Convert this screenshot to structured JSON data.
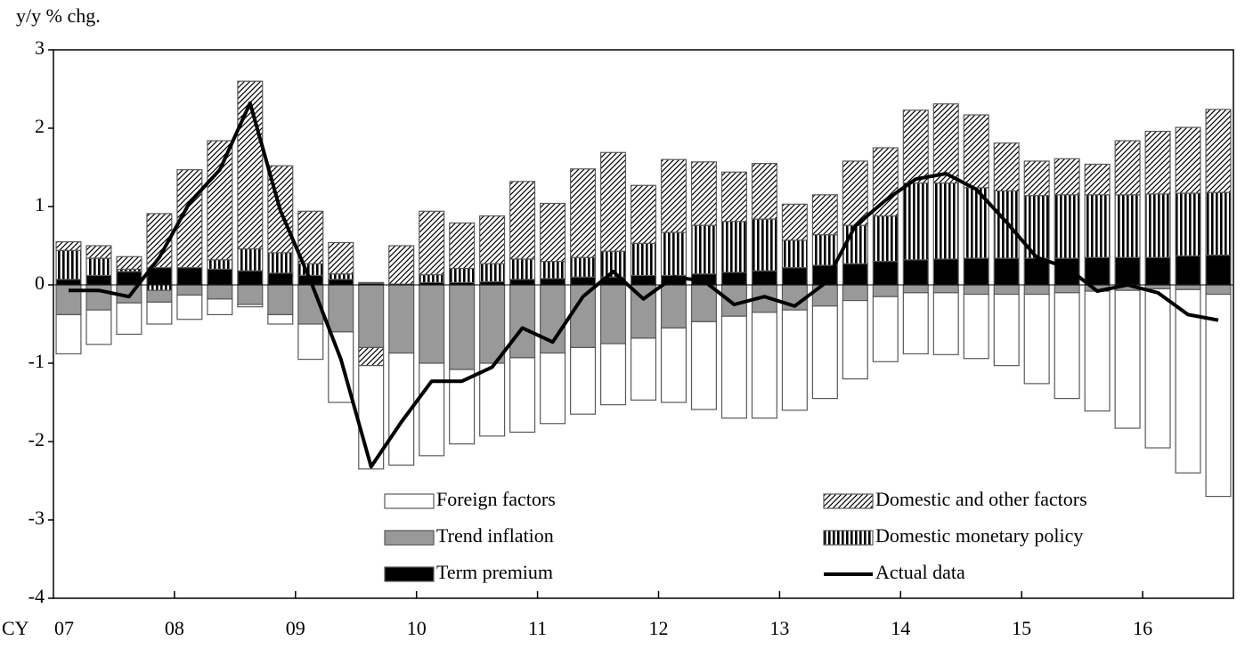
{
  "chart_data": {
    "type": "bar",
    "ylabel": "y/y % chg.",
    "xlabel": "CY",
    "categories": [
      "07",
      null,
      null,
      null,
      "08",
      null,
      null,
      null,
      "09",
      null,
      null,
      null,
      "10",
      null,
      null,
      null,
      "11",
      null,
      null,
      null,
      "12",
      null,
      null,
      null,
      "13",
      null,
      null,
      null,
      "14",
      null,
      null,
      null,
      "15",
      null,
      null,
      null,
      "16",
      null,
      null
    ],
    "ylim": [
      -4,
      3
    ],
    "yticks": [
      -4,
      -3,
      -2,
      -1,
      0,
      1,
      2,
      3
    ],
    "stacked": true,
    "series": [
      {
        "name": "Foreign factors",
        "type": "bar",
        "color": "#ffffff",
        "pattern": "solid",
        "values": [
          -0.5,
          -0.44,
          -0.4,
          -0.28,
          -0.31,
          -0.2,
          -0.03,
          -0.12,
          -0.45,
          -0.9,
          -1.32,
          -1.43,
          -1.18,
          -0.95,
          -0.93,
          -0.95,
          -0.9,
          -0.85,
          -0.78,
          -0.79,
          -0.95,
          -1.12,
          -1.3,
          -1.35,
          -1.28,
          -1.18,
          -1.0,
          -0.83,
          -0.78,
          -0.79,
          -0.82,
          -0.91,
          -1.14,
          -1.35,
          -1.53,
          -1.76,
          -2.03,
          -2.34,
          -2.58
        ]
      },
      {
        "name": "Domestic and other factors",
        "type": "bar",
        "color": "#000000",
        "pattern": "diagonal",
        "values": [
          0.11,
          0.16,
          0.16,
          0.69,
          1.25,
          1.52,
          2.14,
          1.11,
          0.67,
          0.4,
          -0.23,
          0.49,
          0.81,
          0.58,
          0.61,
          0.99,
          0.74,
          1.13,
          1.26,
          0.74,
          0.93,
          0.81,
          0.63,
          0.71,
          0.46,
          0.51,
          0.82,
          0.87,
          0.93,
          1.01,
          0.93,
          0.61,
          0.44,
          0.46,
          0.39,
          0.69,
          0.8,
          0.84,
          1.06
        ]
      },
      {
        "name": "Trend inflation",
        "type": "bar",
        "color": "#999999",
        "pattern": "solid",
        "values": [
          -0.38,
          -0.32,
          -0.23,
          -0.15,
          -0.13,
          -0.18,
          -0.25,
          -0.38,
          -0.5,
          -0.6,
          -0.8,
          -0.87,
          -1.0,
          -1.08,
          -1.0,
          -0.93,
          -0.87,
          -0.8,
          -0.75,
          -0.68,
          -0.55,
          -0.47,
          -0.4,
          -0.35,
          -0.32,
          -0.27,
          -0.2,
          -0.15,
          -0.1,
          -0.1,
          -0.12,
          -0.12,
          -0.12,
          -0.1,
          -0.08,
          -0.07,
          -0.05,
          -0.06,
          -0.12
        ]
      },
      {
        "name": "Domestic monetary policy",
        "type": "bar",
        "color": "#000000",
        "pattern": "vertical",
        "values": [
          0.37,
          0.22,
          0.03,
          -0.07,
          0.0,
          0.12,
          0.28,
          0.26,
          0.15,
          0.07,
          0.01,
          0.01,
          0.1,
          0.18,
          0.23,
          0.26,
          0.22,
          0.25,
          0.33,
          0.41,
          0.55,
          0.62,
          0.65,
          0.66,
          0.35,
          0.39,
          0.49,
          0.58,
          0.98,
          0.97,
          0.9,
          0.86,
          0.8,
          0.81,
          0.8,
          0.8,
          0.81,
          0.8,
          0.8
        ]
      },
      {
        "name": "Term premium",
        "type": "bar",
        "color": "#000000",
        "pattern": "solid",
        "values": [
          0.07,
          0.12,
          0.17,
          0.22,
          0.22,
          0.2,
          0.18,
          0.15,
          0.12,
          0.07,
          0.02,
          0.0,
          0.03,
          0.03,
          0.04,
          0.07,
          0.08,
          0.1,
          0.1,
          0.12,
          0.12,
          0.14,
          0.16,
          0.18,
          0.22,
          0.25,
          0.27,
          0.3,
          0.32,
          0.33,
          0.34,
          0.34,
          0.34,
          0.34,
          0.35,
          0.35,
          0.35,
          0.37,
          0.38
        ]
      },
      {
        "name": "Actual data",
        "type": "line",
        "color": "#000000",
        "values": [
          -0.07,
          -0.07,
          -0.15,
          0.35,
          1.05,
          1.47,
          2.32,
          0.95,
          0.05,
          -0.95,
          -2.32,
          -1.75,
          -1.23,
          -1.23,
          -1.05,
          -0.55,
          -0.73,
          -0.15,
          0.17,
          -0.18,
          0.1,
          0.05,
          -0.25,
          -0.15,
          -0.27,
          0.02,
          0.75,
          1.08,
          1.35,
          1.42,
          1.22,
          0.8,
          0.35,
          0.22,
          -0.08,
          0.0,
          -0.1,
          -0.38,
          -0.45
        ]
      }
    ]
  }
}
